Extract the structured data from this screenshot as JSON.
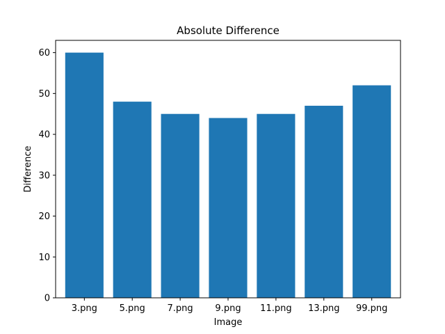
{
  "chart_data": {
    "type": "bar",
    "title": "Absolute Difference",
    "xlabel": "Image",
    "ylabel": "Difference",
    "categories": [
      "3.png",
      "5.png",
      "7.png",
      "9.png",
      "11.png",
      "13.png",
      "99.png"
    ],
    "values": [
      60,
      48,
      45,
      44,
      45,
      47,
      52
    ],
    "ylim": [
      0,
      63
    ],
    "yticks": [
      0,
      10,
      20,
      30,
      40,
      50,
      60
    ],
    "grid": false,
    "bar_color": "#1f77b4"
  }
}
